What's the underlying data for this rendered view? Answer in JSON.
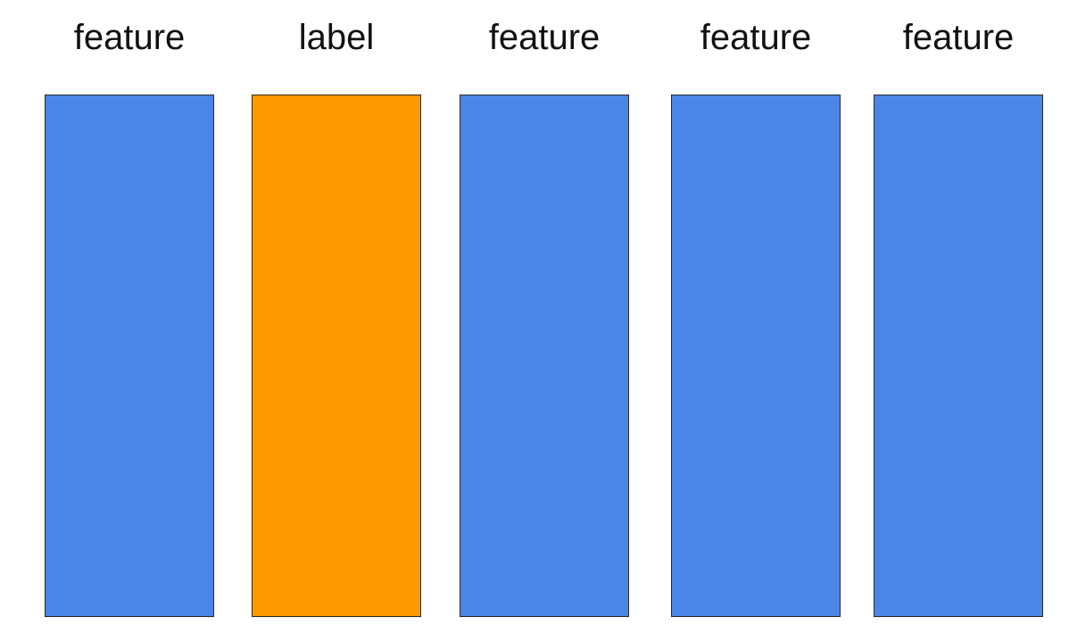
{
  "columns": [
    {
      "label": "feature",
      "role": "feature",
      "color": "#4a86e8"
    },
    {
      "label": "label",
      "role": "label",
      "color": "#ff9900"
    },
    {
      "label": "feature",
      "role": "feature",
      "color": "#4a86e8"
    },
    {
      "label": "feature",
      "role": "feature",
      "color": "#4a86e8"
    },
    {
      "label": "feature",
      "role": "feature",
      "color": "#4a86e8"
    }
  ]
}
